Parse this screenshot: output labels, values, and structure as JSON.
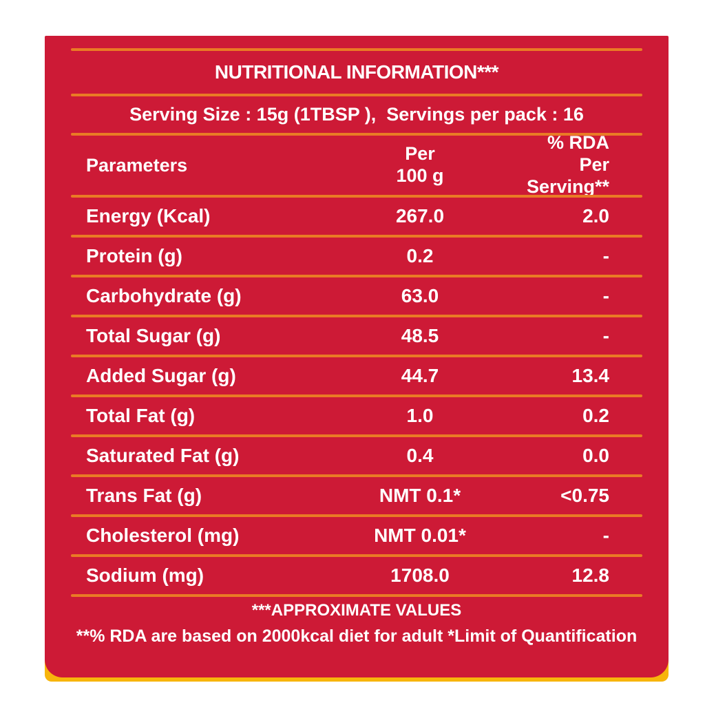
{
  "label": {
    "title": "NUTRITIONAL INFORMATION***",
    "serving_line": "Serving Size : 15g (1TBSP ),  Servings per pack : 16",
    "footnote_approx": "***APPROXIMATE VALUES",
    "footnote_rda": "**% RDA are based on 2000kcal diet for adult *Limit of Quantification"
  },
  "table": {
    "headers": {
      "parameters": "Parameters",
      "per100_line1": "Per",
      "per100_line2": "100 g",
      "rda_line1": "% RDA",
      "rda_line2": "Per Serving**"
    },
    "rows": [
      {
        "label": "Energy (Kcal)",
        "per_100g": "267.0",
        "rda_per_serving": "2.0"
      },
      {
        "label": "Protein (g)",
        "per_100g": "0.2",
        "rda_per_serving": "-"
      },
      {
        "label": "Carbohydrate (g)",
        "per_100g": "63.0",
        "rda_per_serving": "-"
      },
      {
        "label": "Total Sugar (g)",
        "per_100g": "48.5",
        "rda_per_serving": "-"
      },
      {
        "label": "Added Sugar (g)",
        "per_100g": "44.7",
        "rda_per_serving": "13.4"
      },
      {
        "label": "Total Fat (g)",
        "per_100g": "1.0",
        "rda_per_serving": "0.2"
      },
      {
        "label": "Saturated Fat (g)",
        "per_100g": "0.4",
        "rda_per_serving": "0.0"
      },
      {
        "label": "Trans Fat (g)",
        "per_100g": "NMT 0.1*",
        "rda_per_serving": "<0.75"
      },
      {
        "label": "Cholesterol (mg)",
        "per_100g": "NMT 0.01*",
        "rda_per_serving": "-"
      },
      {
        "label": "Sodium (mg)",
        "per_100g": "1708.0",
        "rda_per_serving": "12.8"
      }
    ]
  },
  "colors": {
    "panel_red": "#CD1A36",
    "divider_orange": "#EA7B25",
    "backing_yellow": "#F7B50C",
    "text_white": "#FFFFFF",
    "page_background": "#FFFFFF"
  }
}
